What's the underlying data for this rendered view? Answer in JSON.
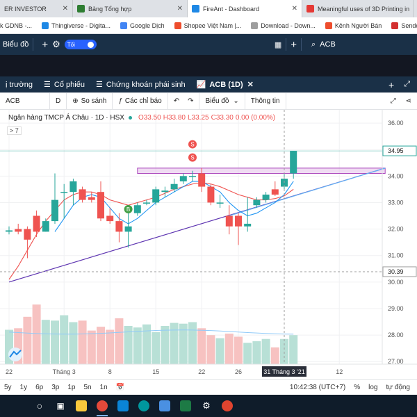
{
  "browser_tabs": [
    {
      "label": "ER INVESTOR",
      "color": "#e0e0e0",
      "active": false
    },
    {
      "label": "Bảng Tổng hợp",
      "color": "#2e7d32",
      "active": false
    },
    {
      "label": "FireAnt - Dashboard",
      "color": "#1e88e5",
      "active": true
    },
    {
      "label": "Meaningful uses of 3D Printing in",
      "color": "#e53935",
      "active": false
    }
  ],
  "bookmarks": [
    {
      "label": "k GDNB -...",
      "color": "#8e24aa"
    },
    {
      "label": "Thingiverse - Digita...",
      "color": "#1e88e5"
    },
    {
      "label": "Google Dịch",
      "color": "#4285f4"
    },
    {
      "label": "Shopee Việt Nam |...",
      "color": "#ee4d2d"
    },
    {
      "label": "Download - Down...",
      "color": "#9e9e9e"
    },
    {
      "label": "Kênh Người Bán",
      "color": "#ee4d2d"
    },
    {
      "label": "Sendo.vn - T",
      "color": "#d32f2f"
    }
  ],
  "app_header": {
    "title": "Biểu đồ",
    "toggle_label": "Tối",
    "search_value": "ACB"
  },
  "sub_tabs": [
    {
      "label": "ị trường"
    },
    {
      "label": "Cổ phiếu"
    },
    {
      "label": "Chứng khoán phái sinh"
    },
    {
      "label": "ACB (1D)"
    }
  ],
  "toolbar": {
    "symbol": "ACB",
    "interval": "D",
    "compare": "So sánh",
    "indicators": "Các chỉ báo",
    "chart_type": "Biểu đồ",
    "info": "Thông tin"
  },
  "legend": {
    "name": "Ngân hàng TMCP Á Châu · 1D · HSX",
    "open": "O33.50",
    "high": "H33.80",
    "low": "L33.25",
    "close": "C33.30",
    "change": "0.00 (0.00%)",
    "collapse": "> 7"
  },
  "chart_data": {
    "type": "candlestick",
    "price_axis": [
      "36.00",
      "35.00",
      "34.00",
      "33.00",
      "32.00",
      "31.00",
      "30.00",
      "29.00",
      "28.00",
      "27.00"
    ],
    "price_range": [
      26.9,
      36.5
    ],
    "last_price_label": "34.95",
    "crosshair_price_label": "30.39",
    "crosshair_date_label": "31 Tháng 3 '21",
    "x_labels": [
      {
        "label": "22",
        "i": 0
      },
      {
        "label": "Tháng 3",
        "i": 6
      },
      {
        "label": "8",
        "i": 11
      },
      {
        "label": "15",
        "i": 16
      },
      {
        "label": "22",
        "i": 21
      },
      {
        "label": "26",
        "i": 25
      },
      {
        "label": "12",
        "i": 36
      }
    ],
    "candles": [
      {
        "o": 31.9,
        "h": 32.1,
        "l": 31.8,
        "c": 31.95
      },
      {
        "o": 32.0,
        "h": 32.2,
        "l": 31.8,
        "c": 31.9
      },
      {
        "o": 32.0,
        "h": 32.1,
        "l": 30.9,
        "c": 31.6
      },
      {
        "o": 32.5,
        "h": 32.7,
        "l": 31.7,
        "c": 31.9
      },
      {
        "o": 31.9,
        "h": 32.4,
        "l": 31.9,
        "c": 32.3
      },
      {
        "o": 32.3,
        "h": 34.1,
        "l": 32.2,
        "c": 33.1
      },
      {
        "o": 33.4,
        "h": 33.7,
        "l": 32.4,
        "c": 33.4
      },
      {
        "o": 33.4,
        "h": 33.9,
        "l": 32.9,
        "c": 33.8
      },
      {
        "o": 33.5,
        "h": 33.6,
        "l": 33.0,
        "c": 33.1
      },
      {
        "o": 33.2,
        "h": 33.4,
        "l": 33.0,
        "c": 33.1
      },
      {
        "o": 33.4,
        "h": 33.8,
        "l": 32.3,
        "c": 32.4
      },
      {
        "o": 32.5,
        "h": 32.8,
        "l": 32.2,
        "c": 32.3
      },
      {
        "o": 32.3,
        "h": 32.6,
        "l": 31.5,
        "c": 31.9
      },
      {
        "o": 31.9,
        "h": 32.6,
        "l": 31.3,
        "c": 32.1
      },
      {
        "o": 32.6,
        "h": 33.0,
        "l": 32.5,
        "c": 32.9
      },
      {
        "o": 33.0,
        "h": 33.1,
        "l": 32.9,
        "c": 33.0
      },
      {
        "o": 33.0,
        "h": 33.6,
        "l": 32.9,
        "c": 33.5
      },
      {
        "o": 33.4,
        "h": 33.6,
        "l": 33.2,
        "c": 33.45
      },
      {
        "o": 33.5,
        "h": 33.9,
        "l": 33.4,
        "c": 33.7
      },
      {
        "o": 33.8,
        "h": 34.1,
        "l": 33.7,
        "c": 34.0
      },
      {
        "o": 34.0,
        "h": 34.2,
        "l": 33.8,
        "c": 34.0
      },
      {
        "o": 34.1,
        "h": 34.3,
        "l": 33.4,
        "c": 33.6
      },
      {
        "o": 33.6,
        "h": 33.7,
        "l": 32.9,
        "c": 33.0
      },
      {
        "o": 33.0,
        "h": 33.3,
        "l": 32.8,
        "c": 33.0
      },
      {
        "o": 32.5,
        "h": 32.9,
        "l": 31.8,
        "c": 32.1
      },
      {
        "o": 32.5,
        "h": 32.6,
        "l": 31.4,
        "c": 32.1
      },
      {
        "o": 32.1,
        "h": 33.2,
        "l": 31.9,
        "c": 32.2
      },
      {
        "o": 32.9,
        "h": 33.2,
        "l": 32.8,
        "c": 33.1
      },
      {
        "o": 33.1,
        "h": 33.4,
        "l": 33.0,
        "c": 33.3
      },
      {
        "o": 33.5,
        "h": 33.8,
        "l": 33.25,
        "c": 33.3
      },
      {
        "o": 33.6,
        "h": 34.1,
        "l": 33.5,
        "c": 33.9
      },
      {
        "o": 34.1,
        "h": 34.95,
        "l": 33.9,
        "c": 34.95
      }
    ],
    "volumes": [
      0.45,
      0.47,
      0.62,
      0.78,
      0.58,
      0.57,
      0.64,
      0.55,
      0.57,
      0.44,
      0.49,
      0.45,
      0.6,
      0.5,
      0.48,
      0.52,
      0.42,
      0.5,
      0.54,
      0.53,
      0.55,
      0.47,
      0.38,
      0.34,
      0.4,
      0.36,
      0.28,
      0.3,
      0.33,
      0.22,
      0.33,
      0.38
    ],
    "ma_fast": [
      null,
      null,
      null,
      null,
      null,
      31.9,
      32.4,
      32.9,
      33.2,
      33.3,
      33.2,
      32.8,
      32.4,
      32.2,
      32.4,
      32.7,
      33.0,
      33.2,
      33.4,
      33.6,
      33.8,
      33.8,
      33.6,
      33.4,
      33.0,
      32.7,
      32.5,
      32.6,
      32.8,
      33.0,
      33.3,
      33.8
    ],
    "ma_slow": [
      30.1,
      30.6,
      31.2,
      31.8,
      32.3,
      32.7,
      33.1,
      33.3,
      33.4,
      33.4,
      33.3,
      33.1,
      33.0,
      32.9,
      33.0,
      33.1,
      33.2,
      33.35,
      33.5,
      33.6,
      33.7,
      33.75,
      33.7,
      33.6,
      33.45,
      33.3,
      33.2,
      33.1,
      33.1,
      33.15,
      33.25,
      33.5
    ],
    "trendline": {
      "from": {
        "i": 0,
        "v": 30.0
      },
      "to": {
        "i": 41,
        "v": 34.3
      }
    },
    "resistance_zone": {
      "from_i": 14,
      "to_i": 41,
      "low": 34.1,
      "high": 34.3
    },
    "markers": [
      {
        "label": "S",
        "i": 20,
        "v": 35.2,
        "color": "#ef5350"
      },
      {
        "label": "S",
        "i": 20,
        "v": 34.7,
        "color": "#ef5350"
      },
      {
        "label": "B",
        "i": 13,
        "v": 32.75,
        "color": "#43a047"
      }
    ]
  },
  "range_buttons": [
    "5y",
    "1y",
    "6p",
    "3p",
    "1p",
    "5n",
    "1n"
  ],
  "range_right": {
    "time": "10:42:38 (UTC+7)",
    "pct": "%",
    "log": "log",
    "auto": "tự động"
  },
  "colors": {
    "up": "#26a69a",
    "down": "#ef5350",
    "ma_fast": "#2196f3",
    "ma_slow": "#ef5350",
    "trend": "#7b1fa2",
    "header": "#1a3047"
  }
}
